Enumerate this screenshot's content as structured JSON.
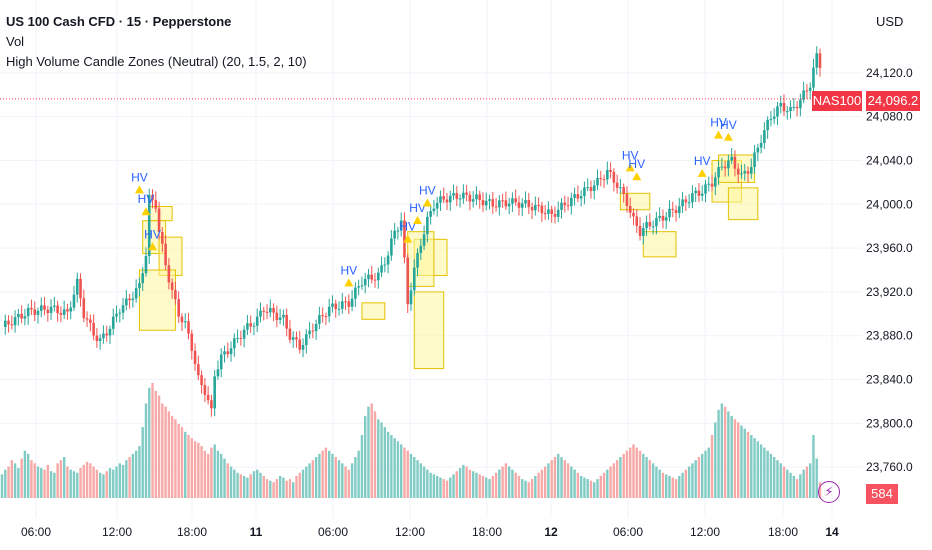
{
  "header": {
    "title": "US 100 Cash CFD · 15 · Pepperstone",
    "indicator_vol": "Vol",
    "indicator_zones": "High Volume Candle Zones (Neutral) (20, 1.5, 2, 10)",
    "currency": "USD"
  },
  "price_tags": {
    "symbol": "NAS100",
    "last_price": "24,096.2",
    "volume": "584"
  },
  "colors": {
    "up": "#26a69a",
    "down": "#ef5350",
    "zone_fill": "#fff59d",
    "zone_border": "#e6c200",
    "hv_label": "#2962ff",
    "hv_marker": "#ffd000",
    "last_price": "#f23645"
  },
  "chart_data": {
    "type": "candlestick",
    "y_ticks": [
      "24,120.0",
      "24,080.0",
      "24,040.0",
      "24,000.0",
      "23,960.0",
      "23,920.0",
      "23,880.0",
      "23,840.0",
      "23,800.0",
      "23,760.0"
    ],
    "ylim": [
      23730,
      24150
    ],
    "x_ticks": [
      "06:00",
      "12:00",
      "18:00",
      "11",
      "06:00",
      "12:00",
      "18:00",
      "12",
      "06:00",
      "12:00",
      "18:00",
      "14"
    ],
    "last_price": 24096.2,
    "price_path": [
      [
        0,
        23888
      ],
      [
        8,
        23902
      ],
      [
        15,
        23905
      ],
      [
        20,
        23900
      ],
      [
        23,
        23928
      ],
      [
        25,
        23900
      ],
      [
        28,
        23882
      ],
      [
        30,
        23875
      ],
      [
        33,
        23888
      ],
      [
        36,
        23905
      ],
      [
        38,
        23910
      ],
      [
        42,
        23925
      ],
      [
        44,
        23955
      ],
      [
        45,
        24005
      ],
      [
        47,
        24000
      ],
      [
        48,
        23975
      ],
      [
        50,
        23945
      ],
      [
        52,
        23920
      ],
      [
        54,
        23900
      ],
      [
        56,
        23890
      ],
      [
        58,
        23870
      ],
      [
        60,
        23840
      ],
      [
        62,
        23830
      ],
      [
        64,
        23810
      ],
      [
        65,
        23845
      ],
      [
        67,
        23860
      ],
      [
        70,
        23870
      ],
      [
        74,
        23885
      ],
      [
        78,
        23895
      ],
      [
        80,
        23905
      ],
      [
        83,
        23900
      ],
      [
        86,
        23895
      ],
      [
        88,
        23880
      ],
      [
        91,
        23870
      ],
      [
        93,
        23878
      ],
      [
        95,
        23888
      ],
      [
        100,
        23905
      ],
      [
        106,
        23910
      ],
      [
        110,
        23930
      ],
      [
        115,
        23935
      ],
      [
        118,
        23955
      ],
      [
        120,
        23975
      ],
      [
        122,
        23985
      ],
      [
        124,
        23910
      ],
      [
        126,
        23940
      ],
      [
        128,
        23965
      ],
      [
        130,
        23985
      ],
      [
        132,
        24000
      ],
      [
        135,
        24005
      ],
      [
        140,
        24008
      ],
      [
        145,
        24005
      ],
      [
        150,
        24000
      ],
      [
        155,
        24002
      ],
      [
        160,
        24000
      ],
      [
        165,
        23995
      ],
      [
        168,
        23990
      ],
      [
        172,
        24000
      ],
      [
        178,
        24012
      ],
      [
        182,
        24020
      ],
      [
        185,
        24030
      ],
      [
        188,
        24018
      ],
      [
        191,
        24002
      ],
      [
        193,
        23985
      ],
      [
        195,
        23975
      ],
      [
        197,
        23980
      ],
      [
        200,
        23985
      ],
      [
        203,
        23990
      ],
      [
        207,
        23998
      ],
      [
        211,
        24008
      ],
      [
        214,
        24012
      ],
      [
        217,
        24020
      ],
      [
        220,
        24035
      ],
      [
        223,
        24040
      ],
      [
        226,
        24025
      ],
      [
        229,
        24035
      ],
      [
        232,
        24060
      ],
      [
        235,
        24080
      ],
      [
        238,
        24090
      ],
      [
        241,
        24085
      ],
      [
        244,
        24095
      ],
      [
        247,
        24110
      ],
      [
        249,
        24135
      ],
      [
        251,
        24120
      ],
      [
        253,
        24100
      ],
      [
        255,
        24096
      ]
    ],
    "volume": [
      15,
      18,
      20,
      24,
      22,
      19,
      25,
      30,
      28,
      24,
      22,
      20,
      19,
      18,
      21,
      17,
      16,
      22,
      24,
      26,
      20,
      18,
      17,
      16,
      19,
      21,
      23,
      22,
      20,
      18,
      16,
      15,
      17,
      19,
      18,
      20,
      22,
      21,
      24,
      26,
      28,
      30,
      33,
      45,
      60,
      70,
      73,
      68,
      65,
      60,
      58,
      55,
      52,
      50,
      47,
      45,
      42,
      40,
      38,
      36,
      35,
      33,
      30,
      28,
      32,
      34,
      30,
      28,
      25,
      22,
      20,
      18,
      16,
      15,
      14,
      13,
      15,
      17,
      18,
      16,
      14,
      12,
      11,
      10,
      12,
      14,
      13,
      11,
      12,
      10,
      14,
      16,
      18,
      20,
      22,
      24,
      26,
      28,
      30,
      32,
      30,
      28,
      26,
      24,
      22,
      20,
      18,
      22,
      26,
      30,
      40,
      52,
      58,
      60,
      55,
      50,
      48,
      45,
      42,
      40,
      38,
      36,
      34,
      32,
      30,
      28,
      26,
      24,
      22,
      20,
      18,
      16,
      15,
      14,
      13,
      12,
      11,
      13,
      15,
      17,
      19,
      21,
      20,
      18,
      17,
      16,
      15,
      14,
      13,
      12,
      14,
      16,
      18,
      20,
      22,
      20,
      18,
      16,
      14,
      12,
      11,
      10,
      12,
      14,
      16,
      18,
      20,
      22,
      24,
      26,
      28,
      26,
      24,
      22,
      20,
      18,
      16,
      14,
      13,
      12,
      11,
      10,
      12,
      14,
      16,
      18,
      20,
      22,
      24,
      26,
      28,
      30,
      32,
      34,
      32,
      30,
      28,
      26,
      24,
      22,
      20,
      18,
      16,
      15,
      14,
      13,
      12,
      14,
      16,
      18,
      20,
      22,
      24,
      26,
      28,
      30,
      32,
      40,
      48,
      56,
      60,
      58,
      55,
      52,
      50,
      48,
      46,
      44,
      42,
      40,
      38,
      36,
      34,
      32,
      30,
      28,
      26,
      24,
      22,
      20,
      18,
      16,
      14,
      12,
      15,
      18,
      20,
      22,
      40,
      25,
      10
    ],
    "zones": [
      {
        "x0": 45,
        "x1": 52,
        "top": 23998,
        "bottom": 23985
      },
      {
        "x0": 43,
        "x1": 50,
        "top": 23985,
        "bottom": 23955
      },
      {
        "x0": 48,
        "x1": 55,
        "top": 23970,
        "bottom": 23935
      },
      {
        "x0": 42,
        "x1": 53,
        "top": 23940,
        "bottom": 23885
      },
      {
        "x0": 110,
        "x1": 117,
        "top": 23910,
        "bottom": 23895
      },
      {
        "x0": 126,
        "x1": 136,
        "top": 23968,
        "bottom": 23935
      },
      {
        "x0": 124,
        "x1": 132,
        "top": 23975,
        "bottom": 23925
      },
      {
        "x0": 126,
        "x1": 135,
        "top": 23920,
        "bottom": 23850
      },
      {
        "x0": 189,
        "x1": 198,
        "top": 24010,
        "bottom": 23995
      },
      {
        "x0": 196,
        "x1": 206,
        "top": 23975,
        "bottom": 23952
      },
      {
        "x0": 217,
        "x1": 226,
        "top": 24040,
        "bottom": 24002
      },
      {
        "x0": 219,
        "x1": 230,
        "top": 24045,
        "bottom": 24020
      },
      {
        "x0": 222,
        "x1": 231,
        "top": 24015,
        "bottom": 23986
      }
    ],
    "hv_markers": [
      {
        "x": 42,
        "y": 24010
      },
      {
        "x": 44,
        "y": 23990
      },
      {
        "x": 46,
        "y": 23958
      },
      {
        "x": 106,
        "y": 23925
      },
      {
        "x": 124,
        "y": 23965
      },
      {
        "x": 127,
        "y": 23982
      },
      {
        "x": 130,
        "y": 23998
      },
      {
        "x": 192,
        "y": 24030
      },
      {
        "x": 194,
        "y": 24022
      },
      {
        "x": 214,
        "y": 24025
      },
      {
        "x": 219,
        "y": 24060
      },
      {
        "x": 222,
        "y": 24058
      }
    ]
  }
}
